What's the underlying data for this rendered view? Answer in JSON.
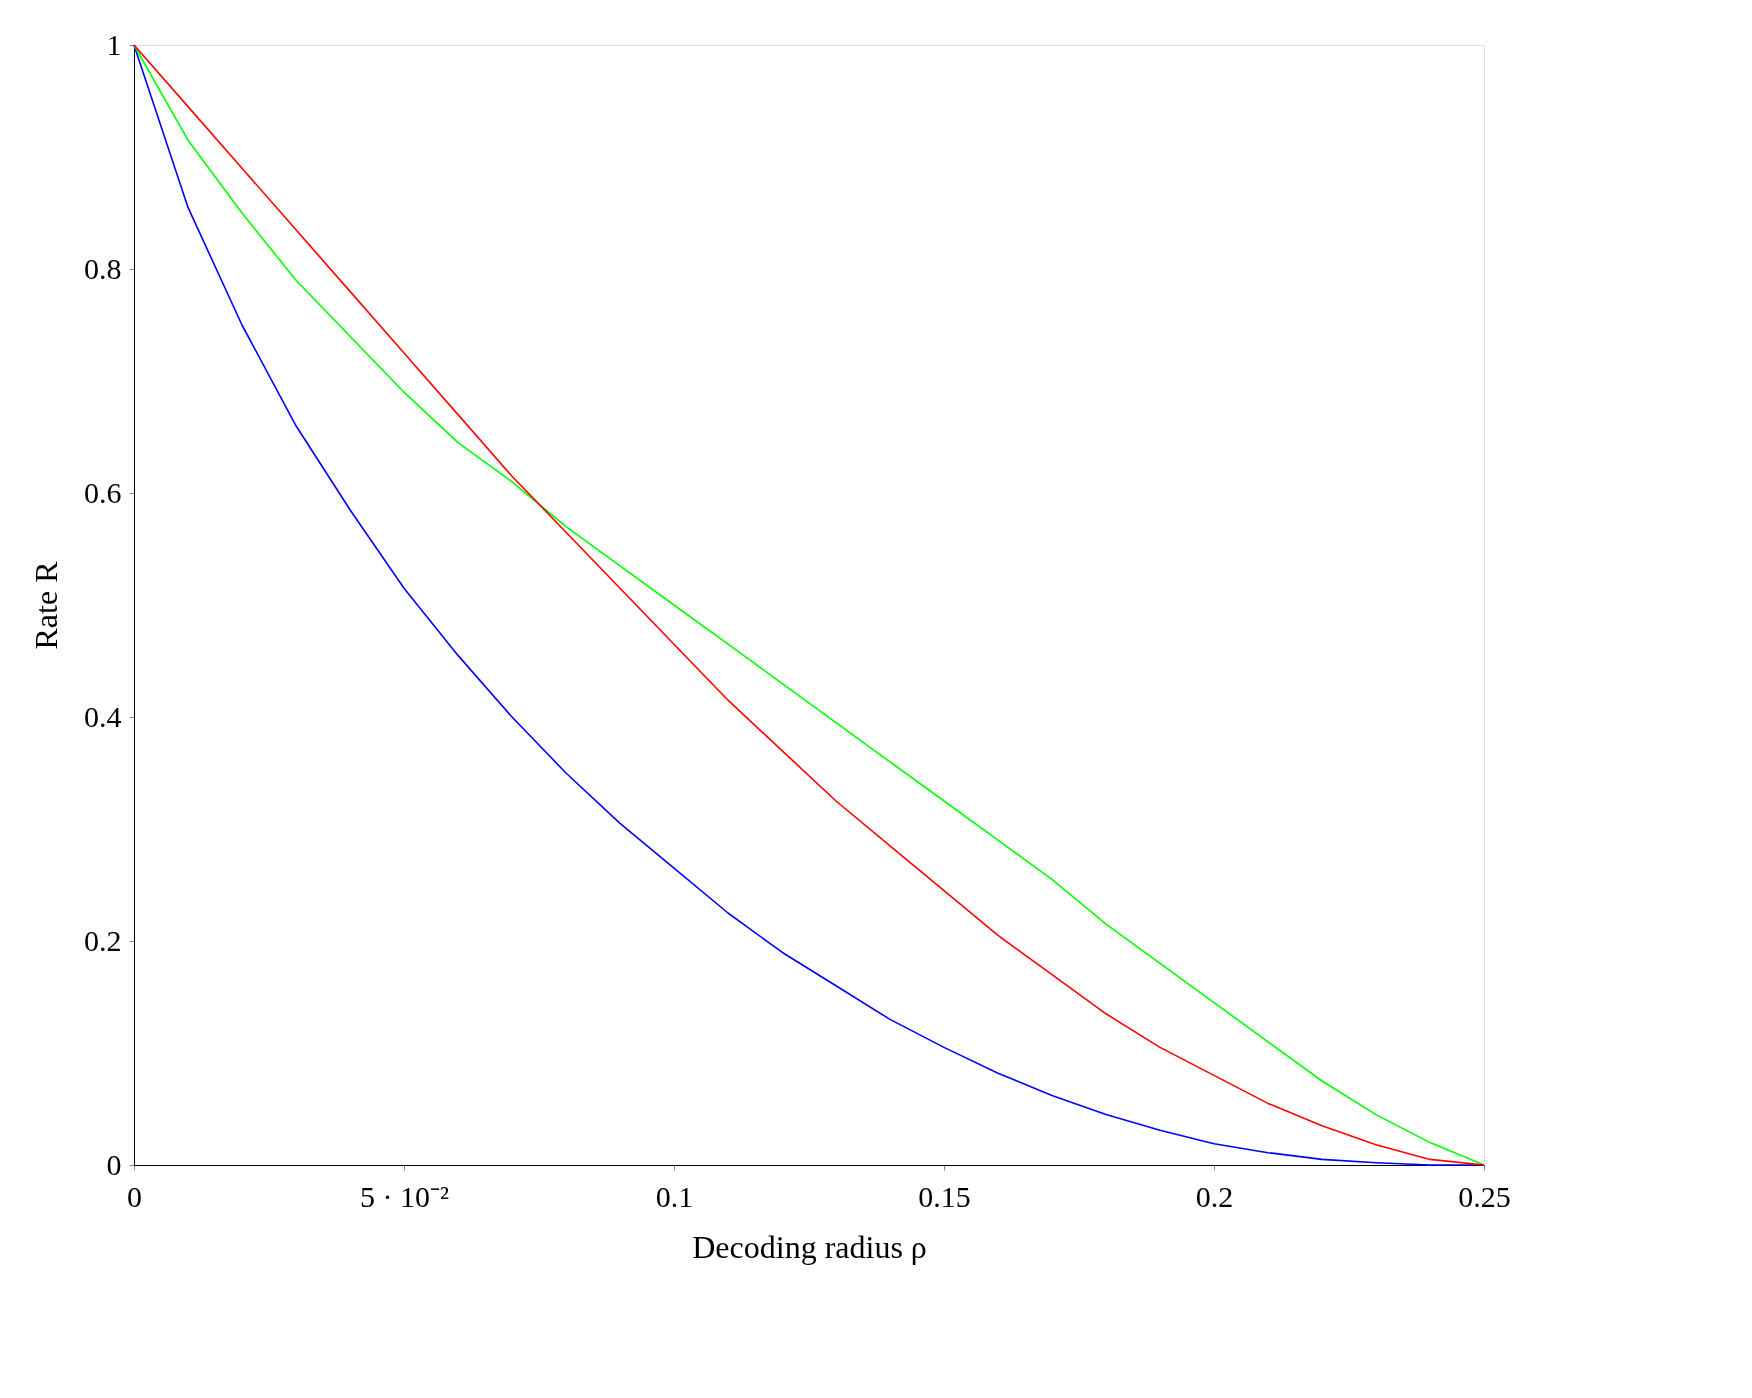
{
  "chart_data": {
    "type": "line",
    "xlabel": "Decoding radius ρ",
    "ylabel": "Rate R",
    "x": [
      0,
      0.01,
      0.02,
      0.03,
      0.04,
      0.05,
      0.06,
      0.07,
      0.08,
      0.09,
      0.1,
      0.11,
      0.12,
      0.13,
      0.14,
      0.15,
      0.16,
      0.17,
      0.18,
      0.19,
      0.2,
      0.21,
      0.22,
      0.23,
      0.24,
      0.25
    ],
    "series": [
      {
        "color": "#0000ff",
        "values": [
          1,
          0.855,
          0.75,
          0.66,
          0.585,
          0.515,
          0.455,
          0.4,
          0.35,
          0.305,
          0.265,
          0.225,
          0.19,
          0.16,
          0.13,
          0.105,
          0.082,
          0.062,
          0.045,
          0.031,
          0.019,
          0.011,
          0.005,
          0.002,
          0,
          0
        ]
      },
      {
        "color": "#00ff00",
        "values": [
          1,
          0.915,
          0.85,
          0.79,
          0.74,
          0.69,
          0.645,
          0.61,
          0.57,
          0.535,
          0.5,
          0.465,
          0.43,
          0.395,
          0.36,
          0.325,
          0.29,
          0.255,
          0.215,
          0.18,
          0.145,
          0.11,
          0.075,
          0.045,
          0.02,
          0
        ]
      },
      {
        "color": "#ff0000",
        "values": [
          1,
          0.945,
          0.89,
          0.835,
          0.78,
          0.725,
          0.67,
          0.615,
          0.565,
          0.515,
          0.465,
          0.415,
          0.37,
          0.325,
          0.285,
          0.245,
          0.205,
          0.17,
          0.135,
          0.105,
          0.08,
          0.055,
          0.035,
          0.018,
          0.005,
          0
        ]
      }
    ],
    "xlim": [
      0,
      0.25
    ],
    "ylim": [
      0,
      1
    ],
    "xticks": [
      0,
      {
        "value": 0.05,
        "label": "5 · 10⁻²"
      },
      0.1,
      0.15,
      0.2,
      0.25
    ],
    "yticks": [
      0,
      0.2,
      0.4,
      0.6,
      0.8,
      1
    ],
    "grid": false,
    "marker": "none",
    "line_style": "solid"
  }
}
